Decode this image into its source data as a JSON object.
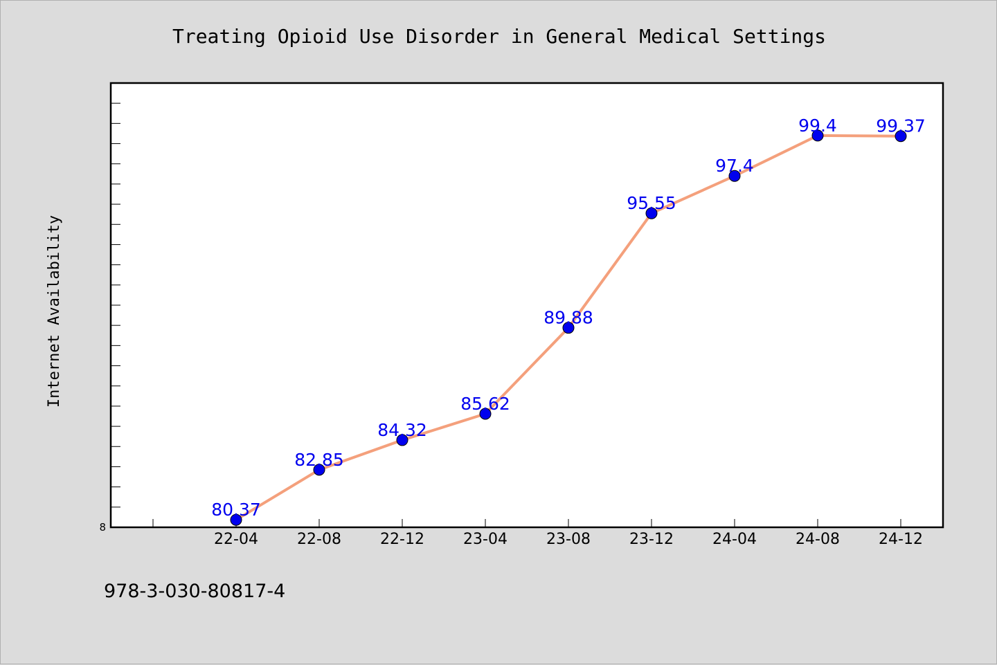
{
  "chart_data": {
    "type": "line",
    "title": "Treating Opioid Use Disorder in General Medical Settings",
    "xlabel": "",
    "ylabel": "Internet Availability",
    "categories": [
      "22-04",
      "22-08",
      "22-12",
      "23-04",
      "23-08",
      "23-12",
      "24-04",
      "24-08",
      "24-12"
    ],
    "series": [
      {
        "values": [
          80.37,
          82.85,
          84.32,
          85.62,
          89.88,
          95.55,
          97.4,
          99.4,
          99.37
        ]
      }
    ],
    "ylim": [
      80,
      102
    ],
    "y_min_label": "8",
    "grid": false,
    "legend": "none",
    "line_color": "#f4a07c",
    "marker_color": "#0000ee",
    "label_color": "#0000ee"
  },
  "footer": {
    "isbn": "978-3-030-80817-4"
  }
}
